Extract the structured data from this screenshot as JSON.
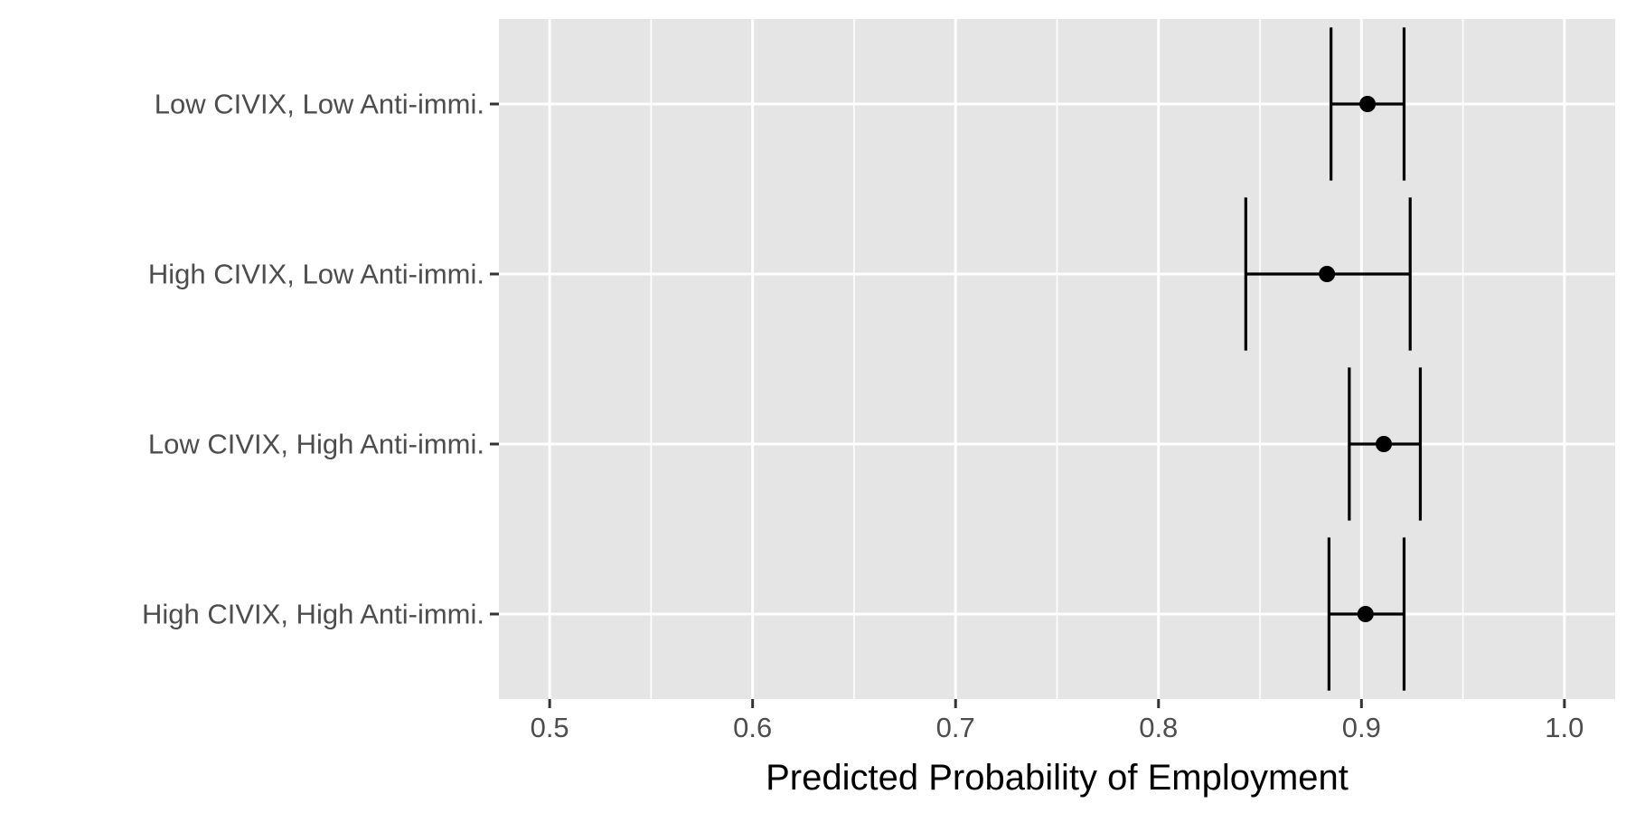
{
  "chart_data": {
    "type": "dot-errorbar",
    "xlabel": "Predicted Probability of Employment",
    "ylabel": "",
    "xlim": [
      0.475,
      1.025
    ],
    "x_ticks": [
      0.5,
      0.6,
      0.7,
      0.8,
      0.9,
      1.0
    ],
    "x_tick_labels": [
      "0.5",
      "0.6",
      "0.7",
      "0.8",
      "0.9",
      "1.0"
    ],
    "grid": true,
    "categories": [
      "Low CIVIX, Low Anti-immi.",
      "High CIVIX, Low Anti-immi.",
      "Low CIVIX, High Anti-immi.",
      "High CIVIX, High Anti-immi."
    ],
    "estimates": [
      0.903,
      0.883,
      0.911,
      0.902
    ],
    "lower": [
      0.885,
      0.843,
      0.894,
      0.884
    ],
    "upper": [
      0.921,
      0.924,
      0.929,
      0.921
    ],
    "colors": {
      "panel": "#e5e5e5",
      "grid": "#ffffff",
      "marks": "#000000",
      "tick_text": "#4d4d4d",
      "axis_ticks": "#333333"
    }
  }
}
